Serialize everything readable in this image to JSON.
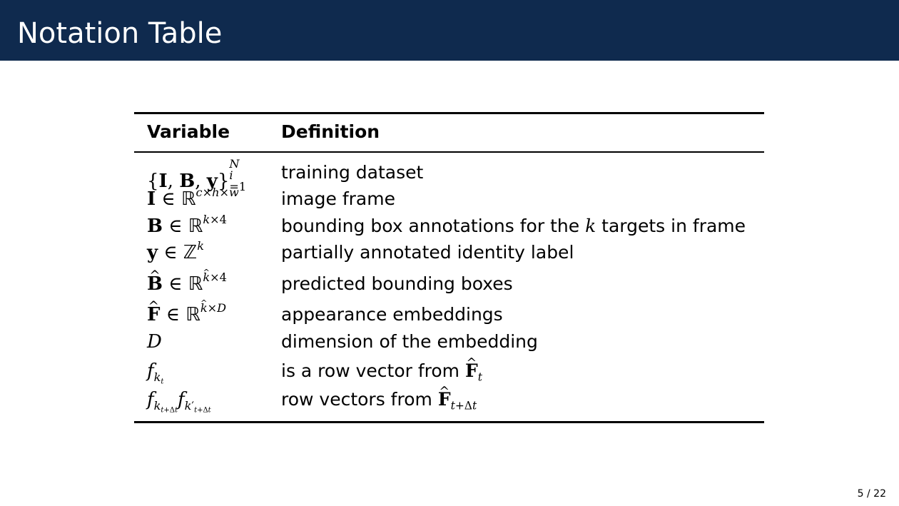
{
  "slide": {
    "title": "Notation Table",
    "page_number": "5 / 22"
  },
  "table": {
    "headers": {
      "variable": "Variable",
      "definition": "Definition"
    },
    "rows": [
      {
        "definition": "training dataset"
      },
      {
        "definition": "image frame"
      },
      {
        "definition_pre": "bounding box annotations for the",
        "definition_var": "k",
        "definition_post": "targets in frame"
      },
      {
        "definition": "partially annotated identity label"
      },
      {
        "definition": "predicted bounding boxes"
      },
      {
        "definition": "appearance embeddings"
      },
      {
        "definition": "dimension of the embedding"
      },
      {
        "definition_pre": "is a row vector from"
      },
      {
        "definition_pre": "row vectors from"
      }
    ]
  }
}
